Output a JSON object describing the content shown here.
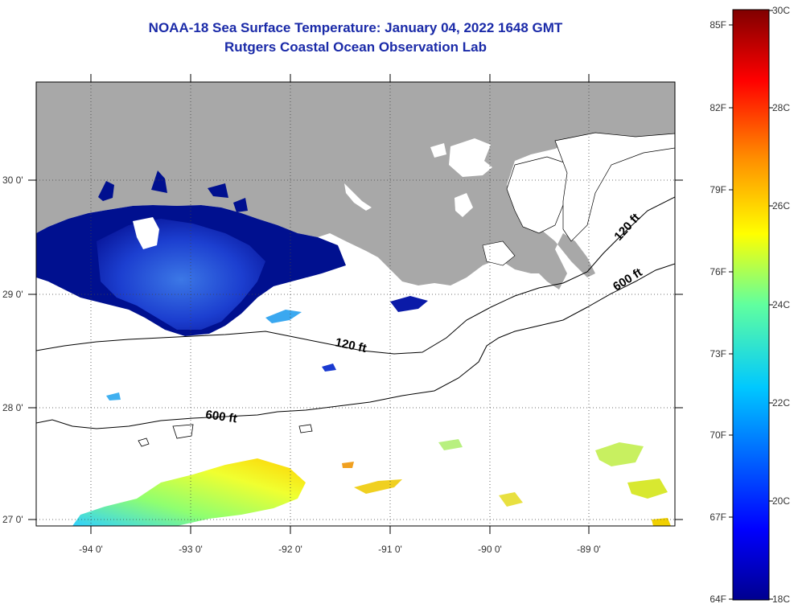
{
  "title": {
    "line1": "NOAA-18 Sea Surface Temperature:  January 04, 2022 1648 GMT",
    "line2": "Rutgers Coastal Ocean Observation Lab"
  },
  "axes": {
    "lon_ticks": [
      "-94 0'",
      "-93 0'",
      "-92 0'",
      "-91 0'",
      "-90 0'",
      "-89 0'"
    ],
    "lat_ticks": [
      "30 0'",
      "29 0'",
      "28 0'",
      "27 0'"
    ]
  },
  "contours": {
    "c120_a": "120 ft",
    "c120_b": "120 ft",
    "c600_a": "600 ft",
    "c600_b": "600 ft"
  },
  "colorbar": {
    "fahrenheit": [
      "85F",
      "82F",
      "79F",
      "76F",
      "73F",
      "70F",
      "67F",
      "64F"
    ],
    "celsius": [
      "30C",
      "28C",
      "26C",
      "24C",
      "22C",
      "20C",
      "18C"
    ]
  },
  "colors": {
    "land": "#a8a8a8",
    "title": "#1a2aa8",
    "cold": "#00008f",
    "warm": "#800000"
  }
}
